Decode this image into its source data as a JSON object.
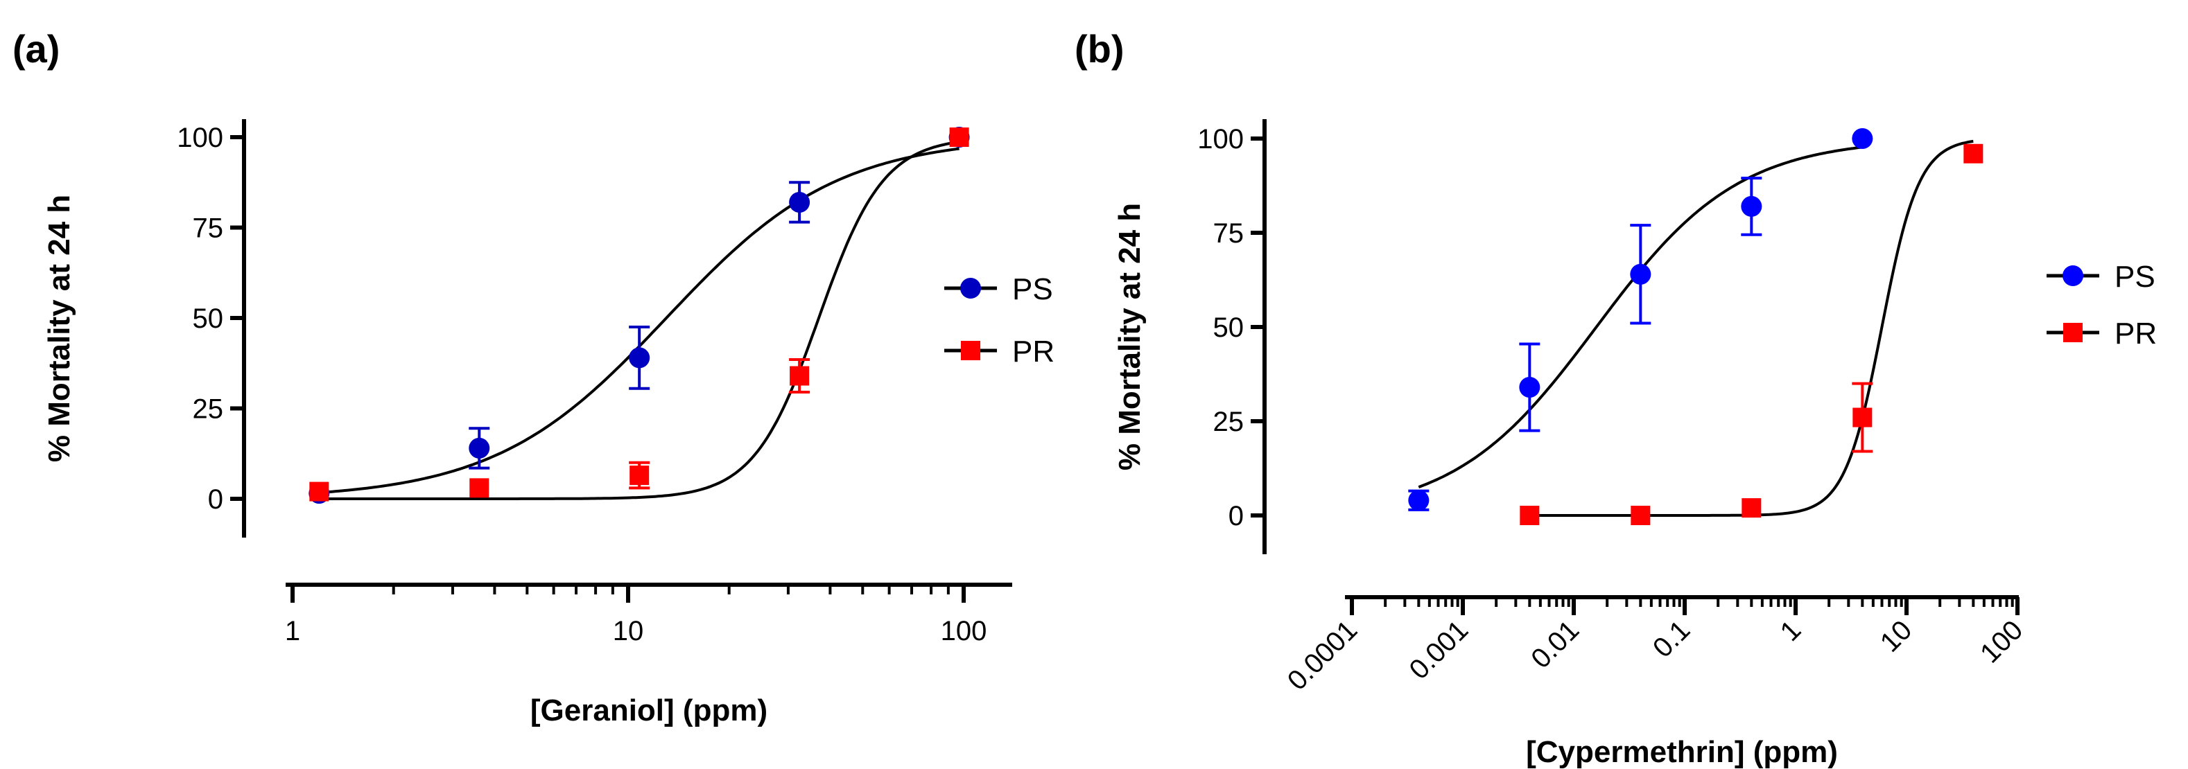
{
  "chart_data": [
    {
      "panel_label": "(a)",
      "type": "scatter",
      "xscale": "log",
      "xlabel": "[Geraniol] (ppm)",
      "ylabel": "% Mortality at 24 h",
      "xlim": [
        1,
        100
      ],
      "ylim": [
        0,
        100
      ],
      "xticks": [
        "1",
        "10",
        "100"
      ],
      "yticks": [
        "0",
        "25",
        "50",
        "75",
        "100"
      ],
      "legend_position": "right",
      "series": [
        {
          "name": "PS",
          "color": "#0000c0",
          "marker": "circle",
          "x": [
            1.2,
            3.6,
            10.8,
            32.4,
            97
          ],
          "y": [
            1.5,
            14,
            39,
            82,
            100
          ],
          "err": [
            0,
            5.5,
            8.5,
            5.5,
            0
          ],
          "fit": {
            "lc50": 13,
            "hill": 1.7
          }
        },
        {
          "name": "PR",
          "color": "#ff0000",
          "marker": "square",
          "x": [
            1.2,
            3.6,
            10.8,
            32.4,
            97
          ],
          "y": [
            2,
            3,
            6.5,
            34,
            100
          ],
          "err": [
            0,
            0,
            3.5,
            4.5,
            0
          ],
          "fit": {
            "lc50": 37,
            "hill": 4.5
          }
        }
      ]
    },
    {
      "panel_label": "(b)",
      "type": "scatter",
      "xscale": "log",
      "xlabel": "[Cypermethrin] (ppm)",
      "ylabel": "% Mortality at 24 h",
      "xlim": [
        0.0001,
        100
      ],
      "ylim": [
        0,
        100
      ],
      "xticks": [
        "0.0001",
        "0.001",
        "0.01",
        "0.1",
        "1",
        "10",
        "100"
      ],
      "yticks": [
        "0",
        "25",
        "50",
        "75",
        "100"
      ],
      "legend_position": "right",
      "series": [
        {
          "name": "PS",
          "color": "#0000ff",
          "marker": "circle",
          "x": [
            0.0004,
            0.004,
            0.04,
            0.4,
            4
          ],
          "y": [
            4,
            34,
            64,
            82,
            100
          ],
          "err": [
            2.5,
            11.5,
            13,
            7.5,
            0
          ],
          "fit": {
            "lc50": 0.016,
            "hill": 0.68,
            "from": 0.0004,
            "to": 4
          }
        },
        {
          "name": "PR",
          "color": "#ff0000",
          "marker": "square",
          "x": [
            0.004,
            0.04,
            0.4,
            4,
            40
          ],
          "y": [
            0,
            0,
            2,
            26,
            96
          ],
          "err": [
            0,
            0,
            0,
            9,
            0
          ],
          "fit": {
            "lc50": 6,
            "hill": 2.6,
            "from": 0.004,
            "to": 40
          }
        }
      ]
    }
  ]
}
